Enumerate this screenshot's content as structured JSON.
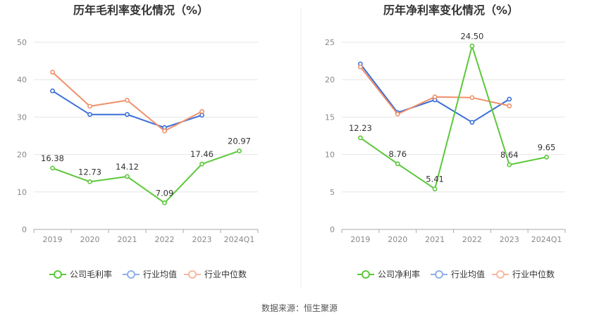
{
  "source": "数据来源：恒生聚源",
  "series_colors": {
    "company": "#5cc83a",
    "industry_avg": "#3a6fd8",
    "industry_median": "#f0906a"
  },
  "legend_colors": {
    "company": "#5cc83a",
    "industry_avg": "#8fb0ec",
    "industry_median": "#f6b9a2"
  },
  "chart_data": [
    {
      "type": "line",
      "title": "历年毛利率变化情况（%）",
      "categories": [
        "2019",
        "2020",
        "2021",
        "2022",
        "2023",
        "2024Q1"
      ],
      "ylim": [
        0,
        50
      ],
      "yticks": [
        "0",
        "10",
        "20",
        "30",
        "40",
        "50"
      ],
      "grid": true,
      "legend_position": "bottom",
      "series": [
        {
          "name": "公司毛利率",
          "key": "company",
          "values": [
            16.38,
            12.73,
            14.12,
            7.09,
            17.46,
            20.97
          ],
          "labels": [
            "16.38",
            "12.73",
            "14.12",
            "7.09",
            "17.46",
            "20.97"
          ]
        },
        {
          "name": "行业均值",
          "key": "industry_avg",
          "values": [
            37.0,
            30.7,
            30.7,
            27.2,
            30.5,
            null
          ]
        },
        {
          "name": "行业中位数",
          "key": "industry_median",
          "values": [
            42.0,
            32.9,
            34.5,
            26.3,
            31.5,
            null
          ]
        }
      ]
    },
    {
      "type": "line",
      "title": "历年净利率变化情况（%）",
      "categories": [
        "2019",
        "2020",
        "2021",
        "2022",
        "2023",
        "2024Q1"
      ],
      "ylim": [
        0,
        25
      ],
      "yticks": [
        "0",
        "5",
        "10",
        "15",
        "20",
        "25"
      ],
      "grid": true,
      "legend_position": "bottom",
      "series": [
        {
          "name": "公司净利率",
          "key": "company",
          "values": [
            12.23,
            8.76,
            5.41,
            24.5,
            8.64,
            9.65
          ],
          "labels": [
            "12.23",
            "8.76",
            "5.41",
            "24.50",
            "8.64",
            "9.65"
          ]
        },
        {
          "name": "行业均值",
          "key": "industry_avg",
          "values": [
            22.1,
            15.6,
            17.3,
            14.3,
            17.4,
            null
          ]
        },
        {
          "name": "行业中位数",
          "key": "industry_median",
          "values": [
            21.7,
            15.4,
            17.7,
            17.6,
            16.5,
            null
          ]
        }
      ]
    }
  ]
}
